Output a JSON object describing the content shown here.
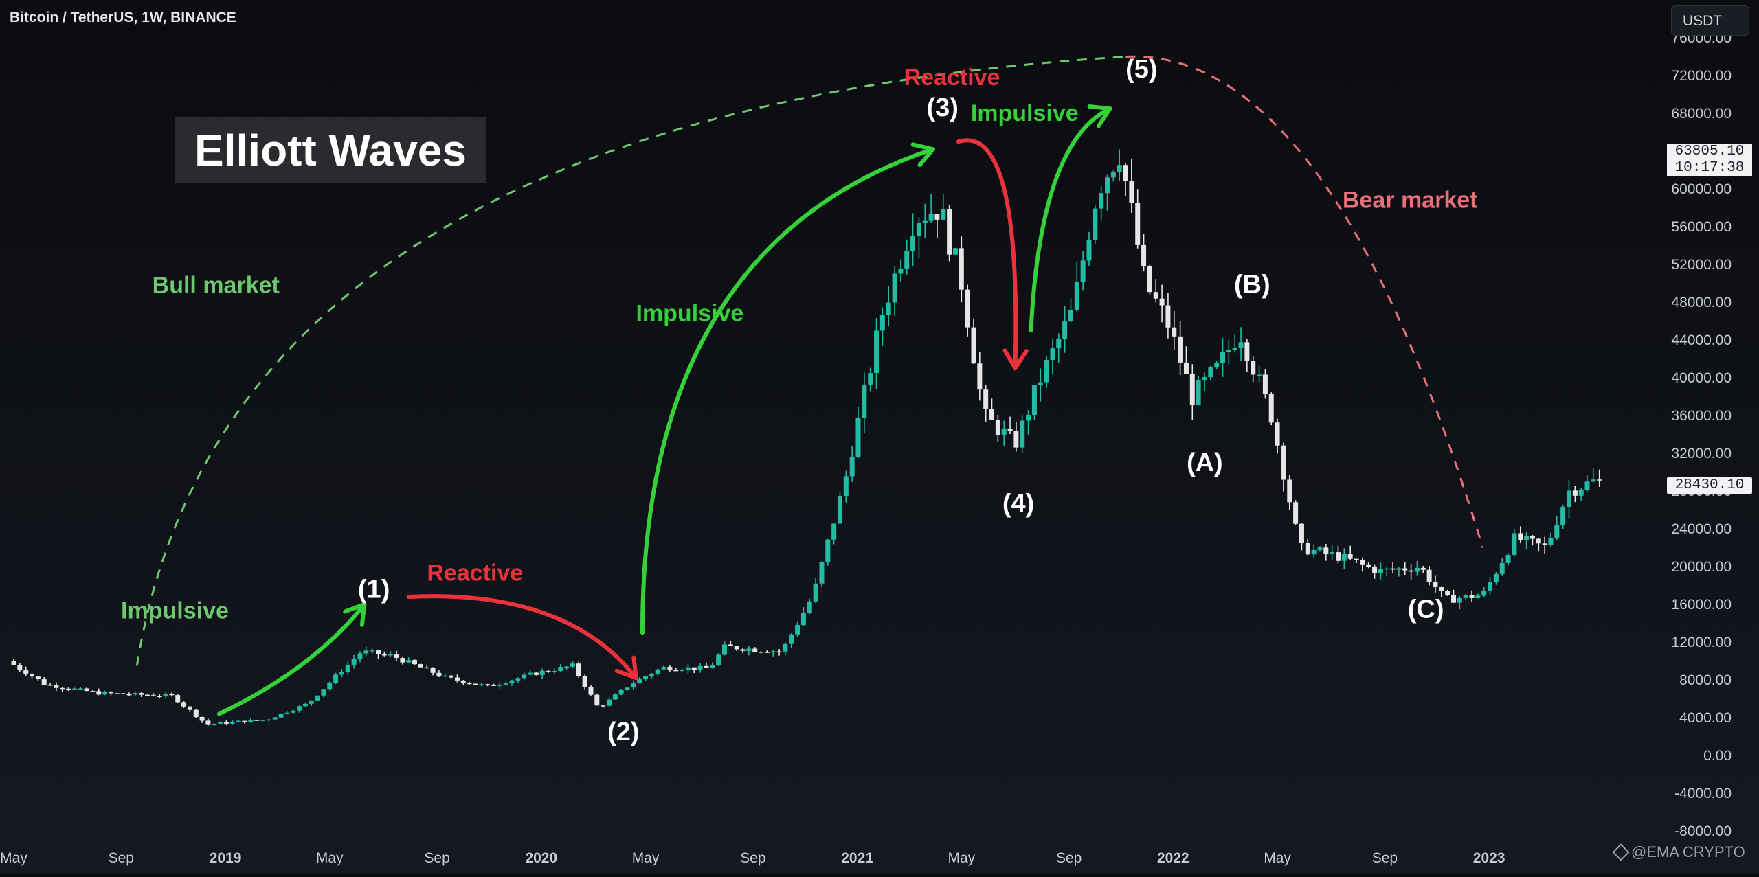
{
  "header": {
    "title": "Bitcoin / TetherUS, 1W, BINANCE",
    "currency": "USDT"
  },
  "watermark": "@EMA CRYPTO",
  "colors": {
    "bull": "#22bba4",
    "bear": "#e6e6e6",
    "green_arrow": "#36d03a",
    "red_arrow": "#e8323c",
    "bull_text": "#6ec86d",
    "bear_text": "#e8707a"
  },
  "chart_data": {
    "type": "candlestick",
    "title": "Elliott Waves",
    "ylim": [
      -8000,
      76000
    ],
    "y_ticks": [
      "76000.00",
      "72000.00",
      "68000.00",
      "64000.00",
      "60000.00",
      "56000.00",
      "52000.00",
      "48000.00",
      "44000.00",
      "40000.00",
      "36000.00",
      "32000.00",
      "28000.00",
      "24000.00",
      "20000.00",
      "16000.00",
      "12000.00",
      "8000.00",
      "4000.00",
      "0.00",
      "-4000.00",
      "-8000.00"
    ],
    "x_ticks": [
      {
        "label": "May",
        "date": 2018.33
      },
      {
        "label": "Sep",
        "date": 2018.67
      },
      {
        "label": "2019",
        "date": 2019.0
      },
      {
        "label": "May",
        "date": 2019.33
      },
      {
        "label": "Sep",
        "date": 2019.67
      },
      {
        "label": "2020",
        "date": 2020.0
      },
      {
        "label": "May",
        "date": 2020.33
      },
      {
        "label": "Sep",
        "date": 2020.67
      },
      {
        "label": "2021",
        "date": 2021.0
      },
      {
        "label": "May",
        "date": 2021.33
      },
      {
        "label": "Sep",
        "date": 2021.67
      },
      {
        "label": "2022",
        "date": 2022.0
      },
      {
        "label": "May",
        "date": 2022.33
      },
      {
        "label": "Sep",
        "date": 2022.67
      },
      {
        "label": "2023",
        "date": 2023.0
      }
    ],
    "xlim": [
      2018.33,
      2023.55
    ],
    "price_tags": [
      {
        "price": 63805.1,
        "label": "63805.10",
        "sub": "10:17:38"
      },
      {
        "price": 28430.1,
        "label": "28430.10"
      }
    ],
    "anchors": [
      {
        "date": 2018.33,
        "price": 10000
      },
      {
        "date": 2018.45,
        "price": 7500
      },
      {
        "date": 2018.62,
        "price": 6600
      },
      {
        "date": 2018.85,
        "price": 6300
      },
      {
        "date": 2018.96,
        "price": 3300
      },
      {
        "date": 2019.15,
        "price": 3800
      },
      {
        "date": 2019.28,
        "price": 5500
      },
      {
        "date": 2019.45,
        "price": 11000
      },
      {
        "date": 2019.55,
        "price": 10500
      },
      {
        "date": 2019.72,
        "price": 8200
      },
      {
        "date": 2019.85,
        "price": 7300
      },
      {
        "date": 2020.0,
        "price": 8700
      },
      {
        "date": 2020.12,
        "price": 9500
      },
      {
        "date": 2020.2,
        "price": 5000
      },
      {
        "date": 2020.3,
        "price": 7500
      },
      {
        "date": 2020.4,
        "price": 9300
      },
      {
        "date": 2020.55,
        "price": 9200
      },
      {
        "date": 2020.6,
        "price": 11500
      },
      {
        "date": 2020.78,
        "price": 11000
      },
      {
        "date": 2020.88,
        "price": 17000
      },
      {
        "date": 2020.98,
        "price": 29000
      },
      {
        "date": 2021.1,
        "price": 47000
      },
      {
        "date": 2021.2,
        "price": 57000
      },
      {
        "date": 2021.28,
        "price": 58000
      },
      {
        "date": 2021.35,
        "price": 50000
      },
      {
        "date": 2021.42,
        "price": 36000
      },
      {
        "date": 2021.52,
        "price": 33000
      },
      {
        "date": 2021.6,
        "price": 40000
      },
      {
        "date": 2021.7,
        "price": 47000
      },
      {
        "date": 2021.78,
        "price": 60000
      },
      {
        "date": 2021.85,
        "price": 64000
      },
      {
        "date": 2021.93,
        "price": 50000
      },
      {
        "date": 2022.0,
        "price": 46000
      },
      {
        "date": 2022.08,
        "price": 38000
      },
      {
        "date": 2022.16,
        "price": 41000
      },
      {
        "date": 2022.23,
        "price": 45000
      },
      {
        "date": 2022.33,
        "price": 36000
      },
      {
        "date": 2022.42,
        "price": 22000
      },
      {
        "date": 2022.55,
        "price": 21000
      },
      {
        "date": 2022.67,
        "price": 19500
      },
      {
        "date": 2022.8,
        "price": 20000
      },
      {
        "date": 2022.88,
        "price": 16500
      },
      {
        "date": 2023.0,
        "price": 17000
      },
      {
        "date": 2023.1,
        "price": 23000
      },
      {
        "date": 2023.2,
        "price": 22000
      },
      {
        "date": 2023.27,
        "price": 28000
      },
      {
        "date": 2023.35,
        "price": 29000
      }
    ],
    "annotations": [
      {
        "text": "Bull market",
        "date": 2018.97,
        "price": 49000,
        "color": "#6ec86d",
        "size": 34
      },
      {
        "text": "Bear market",
        "date": 2022.75,
        "price": 58000,
        "color": "#e8707a",
        "size": 34
      },
      {
        "text": "Impulsive",
        "date": 2018.84,
        "price": 14500,
        "color": "#6ec86d",
        "size": 34
      },
      {
        "text": "Reactive",
        "date": 2019.79,
        "price": 18500,
        "color": "#e8323c",
        "size": 34
      },
      {
        "text": "Impulsive",
        "date": 2020.47,
        "price": 46000,
        "color": "#36d03a",
        "size": 34
      },
      {
        "text": "Reactive",
        "date": 2021.3,
        "price": 71000,
        "color": "#e8323c",
        "size": 34
      },
      {
        "text": "Impulsive",
        "date": 2021.53,
        "price": 67200,
        "color": "#36d03a",
        "size": 34
      },
      {
        "text": "(1)",
        "date": 2019.47,
        "price": 16700,
        "color": "#ffffff",
        "size": 38
      },
      {
        "text": "(2)",
        "date": 2020.26,
        "price": 1600,
        "color": "#ffffff",
        "size": 38
      },
      {
        "text": "(3)",
        "date": 2021.27,
        "price": 67700,
        "color": "#ffffff",
        "size": 38
      },
      {
        "text": "(4)",
        "date": 2021.51,
        "price": 25800,
        "color": "#ffffff",
        "size": 38
      },
      {
        "text": "(5)",
        "date": 2021.9,
        "price": 71800,
        "color": "#ffffff",
        "size": 38
      },
      {
        "text": "(A)",
        "date": 2022.1,
        "price": 30100,
        "color": "#ffffff",
        "size": 38
      },
      {
        "text": "(B)",
        "date": 2022.25,
        "price": 49000,
        "color": "#ffffff",
        "size": 38
      },
      {
        "text": "(C)",
        "date": 2022.8,
        "price": 14600,
        "color": "#ffffff",
        "size": 38
      }
    ],
    "arrows": [
      {
        "color": "#36d03a",
        "from": [
          2018.98,
          4400
        ],
        "ctrl": [
          2019.28,
          9200
        ],
        "to": [
          2019.44,
          16000
        ]
      },
      {
        "color": "#e8323c",
        "from": [
          2019.58,
          16800
        ],
        "ctrl": [
          2020.08,
          17600
        ],
        "to": [
          2020.3,
          8200
        ]
      },
      {
        "color": "#36d03a",
        "from": [
          2020.32,
          13000
        ],
        "ctrl": [
          2020.32,
          54000
        ],
        "to": [
          2021.24,
          64200
        ]
      },
      {
        "color": "#e8323c",
        "from": [
          2021.32,
          65000
        ],
        "ctrl": [
          2021.52,
          67000
        ],
        "to": [
          2021.5,
          41000
        ]
      },
      {
        "color": "#36d03a",
        "from": [
          2021.55,
          45000
        ],
        "ctrl": [
          2021.58,
          65000
        ],
        "to": [
          2021.8,
          68500
        ]
      }
    ],
    "cycle_curves": [
      {
        "color": "#6ec86d",
        "from": [
          2018.72,
          9500
        ],
        "ctrl": [
          2019.0,
          68000
        ],
        "to": [
          2021.85,
          74000
        ]
      },
      {
        "color": "#e8707a",
        "from": [
          2021.85,
          74000
        ],
        "ctrl": [
          2022.5,
          75000
        ],
        "to": [
          2022.98,
          22000
        ]
      }
    ]
  }
}
